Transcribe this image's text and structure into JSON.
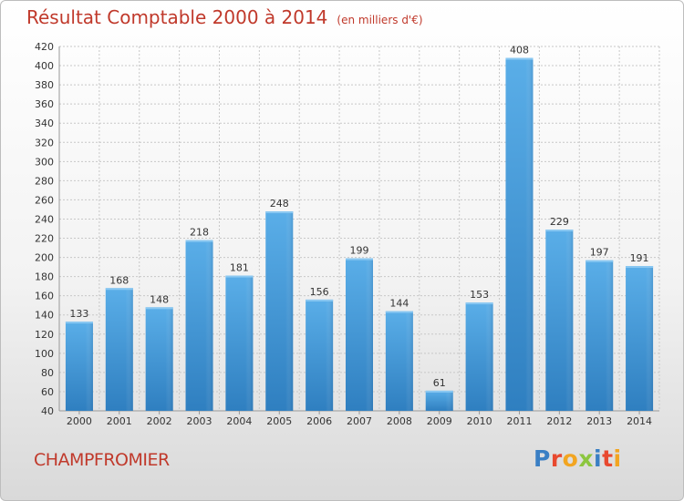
{
  "chart_data": {
    "type": "bar",
    "title": "Résultat Comptable 2000 à 2014",
    "unit": "(en milliers d'€)",
    "categories": [
      "2000",
      "2001",
      "2002",
      "2003",
      "2004",
      "2005",
      "2006",
      "2007",
      "2008",
      "2009",
      "2010",
      "2011",
      "2012",
      "2013",
      "2014"
    ],
    "values": [
      133,
      168,
      148,
      218,
      181,
      248,
      156,
      199,
      144,
      61,
      153,
      408,
      229,
      197,
      191
    ],
    "ylim": [
      40,
      420
    ],
    "yticks": [
      40,
      60,
      80,
      100,
      120,
      140,
      160,
      180,
      200,
      220,
      240,
      260,
      280,
      300,
      320,
      340,
      360,
      380,
      400,
      420
    ],
    "grid": true,
    "bar_color": "#4fa3e0"
  },
  "footer": {
    "place": "CHAMPFROMIER",
    "logo_letters": [
      {
        "ch": "P",
        "color": "#3a7fc4"
      },
      {
        "ch": "r",
        "color": "#e8492f"
      },
      {
        "ch": "o",
        "color": "#f2a521"
      },
      {
        "ch": "x",
        "color": "#8cc63f"
      },
      {
        "ch": "i",
        "color": "#3a7fc4"
      },
      {
        "ch": "t",
        "color": "#e8492f"
      },
      {
        "ch": "i",
        "color": "#f2a521"
      }
    ]
  }
}
